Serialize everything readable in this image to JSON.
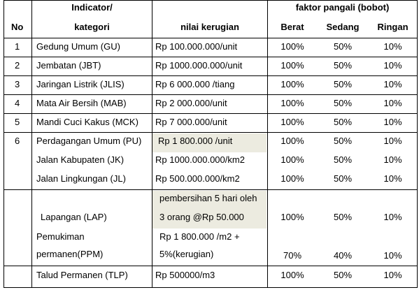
{
  "header": {
    "no": "No",
    "indicator_line1": "Indicator/",
    "indicator_line2": "kategori",
    "nilai": "nilai kerugian",
    "faktor": "faktor pangali (bobot)",
    "berat": "Berat",
    "sedang": "Sedang",
    "ringan": "Ringan"
  },
  "rows": [
    {
      "no": "1",
      "indicator": "Gedung Umum (GU)",
      "nilai": "Rp 100.000.000/unit",
      "berat": "100%",
      "sedang": "50%",
      "ringan": "10%"
    },
    {
      "no": "2",
      "indicator": "Jembatan (JBT)",
      "nilai": "Rp 1000.000.000/unit",
      "berat": "100%",
      "sedang": "50%",
      "ringan": "10%"
    },
    {
      "no": "3",
      "indicator": "Jaringan Listrik (JLIS)",
      "nilai": "Rp 6 000.000 /tiang",
      "berat": "100%",
      "sedang": "50%",
      "ringan": "10%"
    },
    {
      "no": "4",
      "indicator": "Mata Air Bersih (MAB)",
      "nilai": "Rp 2 000.000/unit",
      "berat": "100%",
      "sedang": "50%",
      "ringan": "10%"
    },
    {
      "no": "5",
      "indicator": "Mandi Cuci Kakus (MCK)",
      "nilai": "Rp 7 000.000/unit",
      "berat": "100%",
      "sedang": "50%",
      "ringan": "10%"
    },
    {
      "no": "6",
      "indicator": "Perdagangan Umum (PU)",
      "nilai": "Rp 1 800.000 /unit",
      "berat": "100%",
      "sedang": "50%",
      "ringan": "10%"
    },
    {
      "no": "",
      "indicator": "Jalan Kabupaten  (JK)",
      "nilai": "Rp 1000.000.000/km2",
      "berat": "100%",
      "sedang": "50%",
      "ringan": "10%"
    },
    {
      "no": "",
      "indicator": "Jalan Lingkungan (JL)",
      "nilai": "Rp 500.000.000/km2",
      "berat": "100%",
      "sedang": "50%",
      "ringan": "10%"
    },
    {
      "no": "",
      "indicator": "Lapangan (LAP)",
      "nilai_line1": "pembersihan  5 hari oleh",
      "nilai_line2": "3 orang @Rp 50.000",
      "berat": "100%",
      "sedang": "50%",
      "ringan": "10%"
    },
    {
      "no": "",
      "indicator_line1": "Pemukiman",
      "indicator_line2": "permanen(PPM)",
      "nilai_line1": "Rp 1 800.000 /m2 +",
      "nilai_line2": "5%(kerugian)",
      "berat": "70%",
      "sedang": "40%",
      "ringan": "10%"
    },
    {
      "no": "",
      "indicator": "Talud Permanen (TLP)",
      "nilai": "Rp 500000/m3",
      "berat": "100%",
      "sedang": "50%",
      "ringan": "10%"
    }
  ]
}
